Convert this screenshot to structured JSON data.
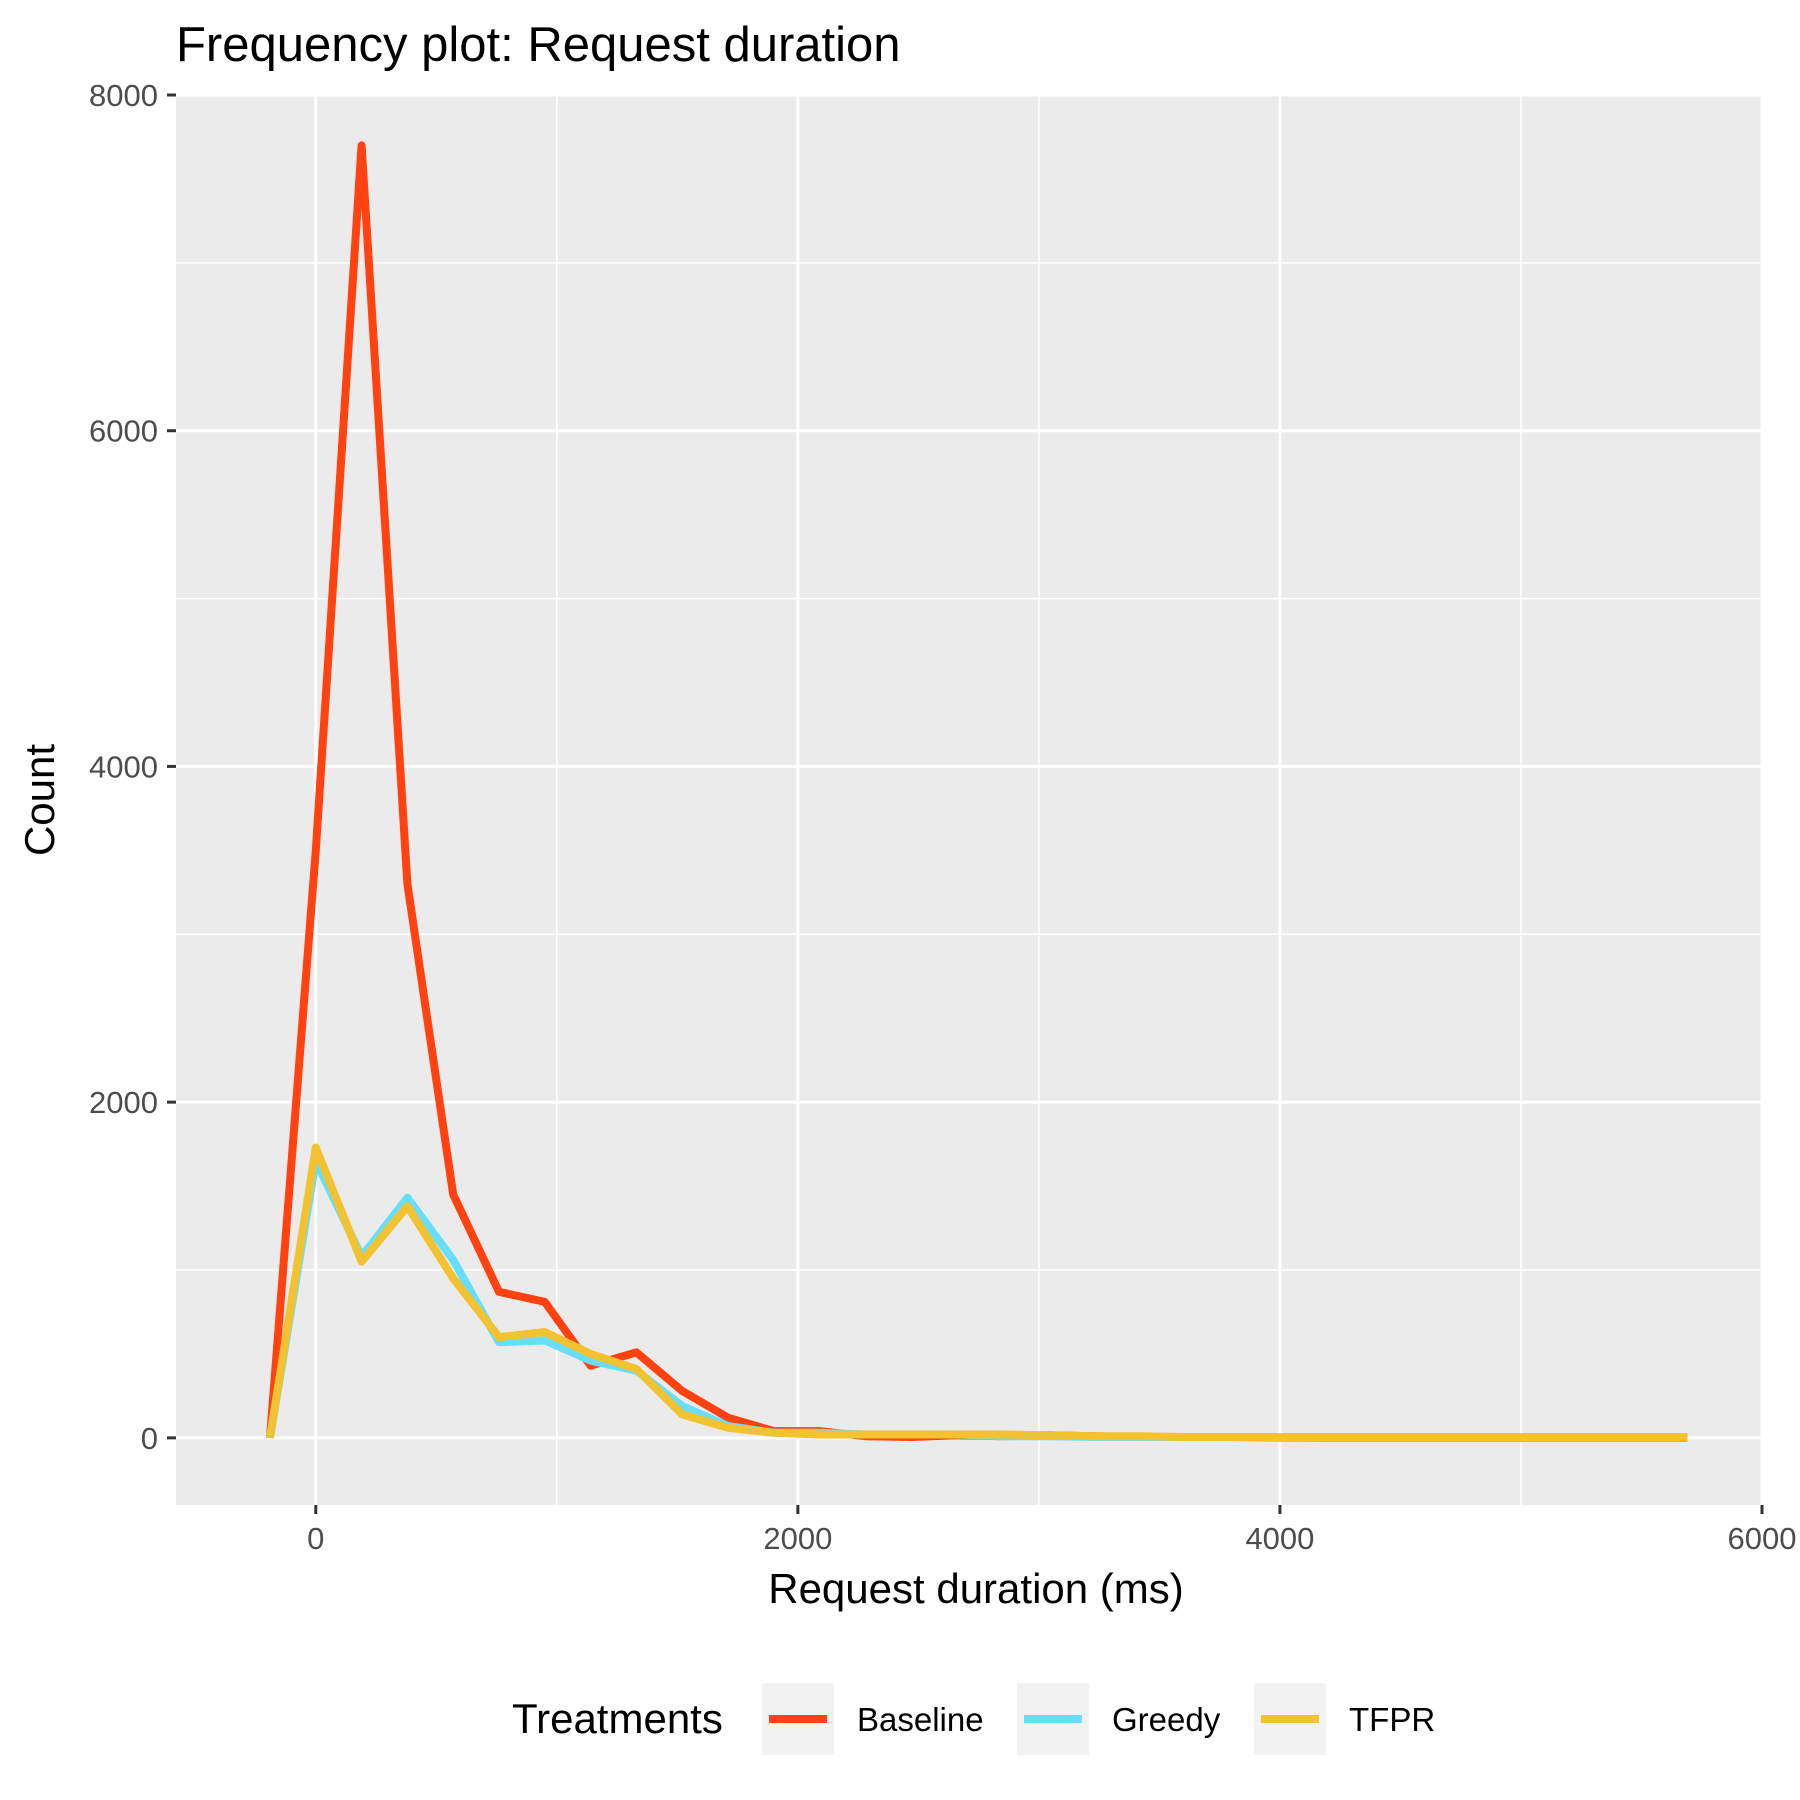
{
  "chart_data": {
    "type": "line",
    "title": "Frequency plot: Request duration",
    "xlabel": "Request duration (ms)",
    "ylabel": "Count",
    "xlim": [
      -580,
      6000
    ],
    "ylim": [
      -400,
      8000
    ],
    "x_ticks": [
      0,
      2000,
      4000,
      6000
    ],
    "x_tick_labels": [
      "0",
      "2000",
      "4000",
      "6000"
    ],
    "y_ticks": [
      0,
      2000,
      4000,
      6000,
      8000
    ],
    "y_tick_labels": [
      "0",
      "2000",
      "4000",
      "6000",
      "8000"
    ],
    "grid": true,
    "legend": {
      "title": "Treatments",
      "position": "bottom"
    },
    "x": [
      -190,
      0,
      190,
      380,
      570,
      760,
      950,
      1140,
      1330,
      1520,
      1710,
      1900,
      2090,
      2280,
      2470,
      2660,
      2850,
      3040,
      3230,
      3420,
      3610,
      3800,
      3990,
      4180,
      4370,
      4560,
      4750,
      4940,
      5130,
      5320,
      5510,
      5690
    ],
    "series": [
      {
        "name": "Baseline",
        "color": "#FF4210",
        "values": [
          0,
          3500,
          7700,
          3300,
          1450,
          870,
          810,
          430,
          510,
          280,
          120,
          40,
          40,
          10,
          5,
          15,
          10,
          15,
          10,
          5,
          5,
          5,
          5,
          0,
          0,
          0,
          0,
          0,
          0,
          0,
          0,
          0
        ]
      },
      {
        "name": "Greedy",
        "color": "#66DFFF",
        "values": [
          0,
          1650,
          1080,
          1430,
          1060,
          570,
          580,
          460,
          400,
          190,
          70,
          30,
          30,
          20,
          20,
          20,
          10,
          10,
          5,
          5,
          5,
          5,
          0,
          0,
          0,
          0,
          0,
          0,
          0,
          0,
          0,
          0
        ]
      },
      {
        "name": "TFPR",
        "color": "#F2C230",
        "values": [
          0,
          1730,
          1050,
          1380,
          950,
          600,
          630,
          500,
          410,
          140,
          60,
          30,
          20,
          20,
          20,
          20,
          20,
          15,
          10,
          10,
          5,
          5,
          5,
          5,
          5,
          5,
          5,
          5,
          5,
          5,
          5,
          5
        ]
      }
    ]
  }
}
